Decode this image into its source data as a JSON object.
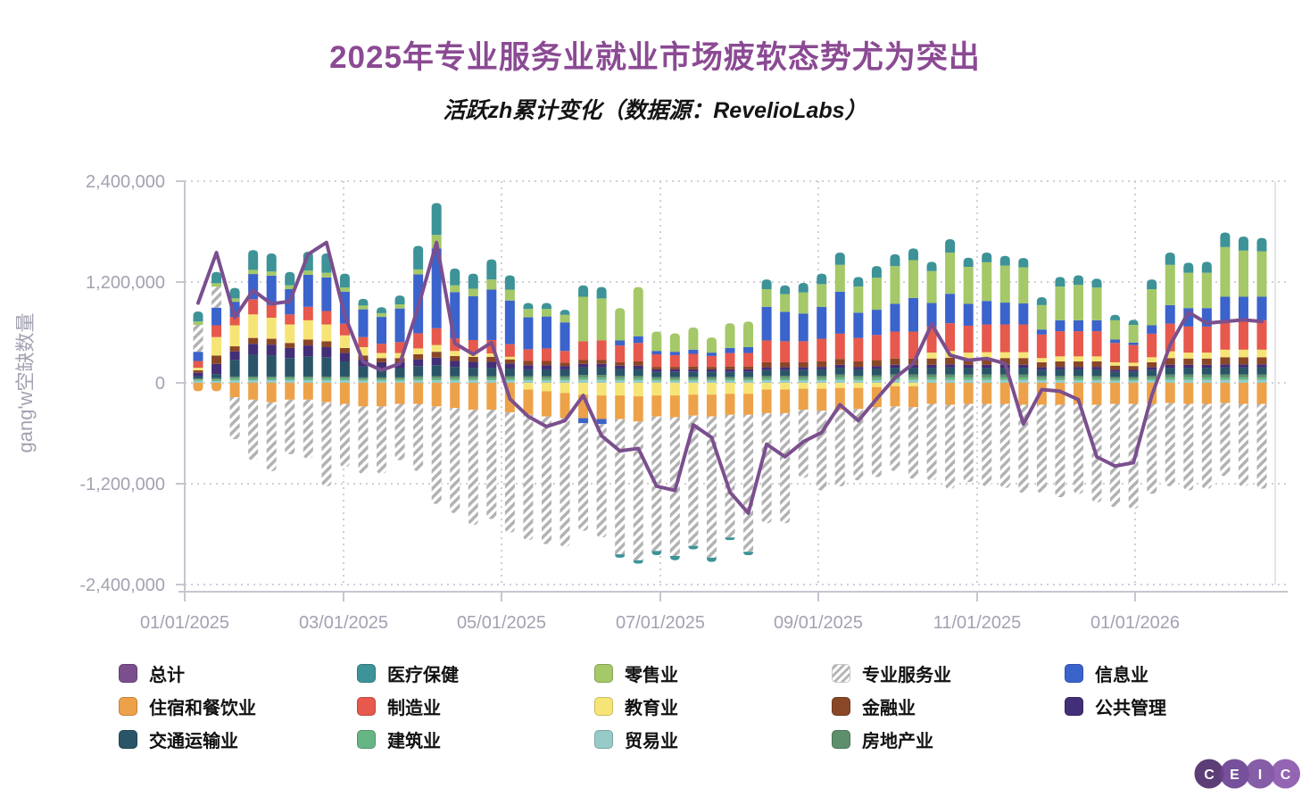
{
  "title": "2025年专业服务业就业市场疲软态势尤为突出",
  "subtitle": "活跃zh累计变化（数据源：RevelioLabs）",
  "colors": {
    "title": "#8b4a93",
    "axis_text": "#a2a2b2",
    "grid_line": "#cfcfd6",
    "axis_line": "#c6c6d0",
    "total_line": "#7b4f8e",
    "hatch_gray": "#b2b2b2"
  },
  "y_axis": {
    "label": "gang'w空缺数量",
    "tick_labels": [
      "2,400,000",
      "1,200,000",
      "0",
      "-1,200,000",
      "-2,400,000"
    ],
    "tick_values": [
      2400,
      1200,
      0,
      -1200,
      -2400
    ]
  },
  "x_axis": {
    "tick_labels": [
      "01/01/2025",
      "03/01/2025",
      "05/01/2025",
      "07/01/2025",
      "09/01/2025",
      "11/01/2025",
      "01/01/2026"
    ]
  },
  "legend": {
    "items": [
      {
        "label": "总计",
        "color": "#7b4f8e",
        "hatch": false
      },
      {
        "label": "医疗保健",
        "color": "#3d9397",
        "hatch": false
      },
      {
        "label": "零售业",
        "color": "#a5c868",
        "hatch": false
      },
      {
        "label": "专业服务业",
        "color": "#ffffff",
        "hatch": true
      },
      {
        "label": "信息业",
        "color": "#3b63cc",
        "hatch": false
      },
      {
        "label": "住宿和餐饮业",
        "color": "#eda249",
        "hatch": false
      },
      {
        "label": "制造业",
        "color": "#e6594c",
        "hatch": false
      },
      {
        "label": "教育业",
        "color": "#f6e576",
        "hatch": false
      },
      {
        "label": "金融业",
        "color": "#8a4727",
        "hatch": false
      },
      {
        "label": "公共管理",
        "color": "#432e78",
        "hatch": false
      },
      {
        "label": "交通运输业",
        "color": "#2a5568",
        "hatch": false
      },
      {
        "label": "建筑业",
        "color": "#67b584",
        "hatch": false
      },
      {
        "label": "贸易业",
        "color": "#96cbc8",
        "hatch": false
      },
      {
        "label": "房地产业",
        "color": "#5d8f6d",
        "hatch": false
      }
    ]
  },
  "logo": {
    "letters": [
      "C",
      "E",
      "I",
      "C"
    ],
    "colors": [
      "#4e2d6a",
      "#6a4191",
      "#7c4fa0",
      "#8a58ad"
    ]
  },
  "chart_data": {
    "type": "stacked-bar+line",
    "title": "2025年专业服务业就业市场疲软态势尤为突出",
    "subtitle": "活跃zh累计变化（数据源：RevelioLabs）",
    "ylabel": "gang'w空缺数量",
    "value_unit": "thousands (×1,000 vacancies)",
    "weeks": 59,
    "x_start": "01/01/2025",
    "x_frequency": "weekly",
    "ylim": [
      -2400,
      2400
    ],
    "grid": true,
    "legend_position": "bottom",
    "bar_series": [
      {
        "name": "贸易业",
        "color": "#96cbc8",
        "values": [
          25,
          20,
          30,
          30,
          30,
          30,
          30,
          30,
          30,
          25,
          25,
          25,
          30,
          30,
          30,
          30,
          30,
          30,
          30,
          30,
          30,
          35,
          35,
          30,
          30,
          25,
          25,
          25,
          25,
          25,
          25,
          30,
          30,
          30,
          30,
          35,
          30,
          30,
          35,
          35,
          35,
          35,
          35,
          35,
          35,
          35,
          30,
          30,
          30,
          30,
          25,
          25,
          30,
          35,
          35,
          35,
          35,
          35,
          35
        ]
      },
      {
        "name": "建筑业",
        "color": "#67b584",
        "values": [
          15,
          20,
          25,
          25,
          25,
          25,
          25,
          25,
          25,
          20,
          20,
          20,
          25,
          25,
          25,
          25,
          25,
          25,
          25,
          25,
          25,
          30,
          30,
          25,
          25,
          20,
          20,
          20,
          20,
          20,
          20,
          25,
          25,
          25,
          25,
          30,
          25,
          30,
          30,
          30,
          30,
          30,
          30,
          30,
          30,
          30,
          25,
          25,
          25,
          25,
          20,
          20,
          25,
          30,
          30,
          30,
          30,
          30,
          30
        ]
      },
      {
        "name": "房地产业",
        "color": "#5d8f6d",
        "values": [
          10,
          15,
          20,
          20,
          20,
          20,
          20,
          20,
          20,
          20,
          20,
          20,
          25,
          25,
          25,
          25,
          25,
          25,
          25,
          25,
          25,
          30,
          30,
          30,
          30,
          25,
          25,
          25,
          25,
          25,
          25,
          30,
          30,
          30,
          30,
          35,
          30,
          30,
          35,
          35,
          35,
          35,
          35,
          35,
          35,
          35,
          30,
          30,
          30,
          30,
          25,
          25,
          30,
          35,
          35,
          35,
          35,
          35,
          35
        ]
      },
      {
        "name": "交通运输业",
        "color": "#2a5568",
        "values": [
          30,
          50,
          200,
          260,
          250,
          220,
          240,
          230,
          180,
          130,
          110,
          110,
          120,
          130,
          110,
          100,
          100,
          90,
          80,
          80,
          80,
          90,
          90,
          80,
          80,
          60,
          60,
          60,
          60,
          60,
          60,
          70,
          70,
          70,
          75,
          80,
          75,
          80,
          80,
          80,
          80,
          85,
          80,
          80,
          80,
          80,
          70,
          75,
          75,
          75,
          60,
          60,
          70,
          80,
          80,
          80,
          85,
          85,
          85
        ]
      },
      {
        "name": "公共管理",
        "color": "#432e78",
        "values": [
          40,
          120,
          100,
          130,
          130,
          120,
          130,
          120,
          100,
          80,
          70,
          70,
          80,
          90,
          70,
          70,
          70,
          60,
          50,
          50,
          40,
          40,
          40,
          40,
          40,
          30,
          30,
          30,
          30,
          30,
          30,
          30,
          30,
          30,
          30,
          35,
          30,
          30,
          35,
          35,
          35,
          35,
          35,
          35,
          35,
          35,
          30,
          30,
          30,
          30,
          25,
          25,
          30,
          35,
          35,
          35,
          35,
          35,
          35
        ]
      },
      {
        "name": "金融业",
        "color": "#8a4727",
        "values": [
          30,
          100,
          60,
          70,
          70,
          60,
          70,
          70,
          60,
          50,
          50,
          50,
          60,
          70,
          60,
          60,
          60,
          50,
          50,
          50,
          40,
          50,
          50,
          40,
          50,
          30,
          30,
          35,
          30,
          35,
          35,
          60,
          60,
          60,
          65,
          70,
          65,
          70,
          75,
          75,
          75,
          80,
          75,
          80,
          80,
          80,
          60,
          65,
          65,
          65,
          50,
          45,
          60,
          80,
          75,
          75,
          85,
          85,
          85
        ]
      },
      {
        "name": "教育业",
        "color": "#f6e576",
        "values": [
          30,
          220,
          250,
          280,
          250,
          220,
          230,
          200,
          150,
          100,
          60,
          60,
          70,
          80,
          60,
          50,
          40,
          30,
          -80,
          -100,
          -120,
          -140,
          -150,
          -150,
          -160,
          -150,
          -150,
          -140,
          -140,
          -130,
          -130,
          -80,
          -80,
          -70,
          -70,
          -60,
          -60,
          -50,
          -40,
          -40,
          70,
          80,
          70,
          70,
          70,
          70,
          50,
          60,
          60,
          60,
          40,
          40,
          60,
          80,
          70,
          70,
          90,
          90,
          90
        ]
      },
      {
        "name": "住宿和餐饮业",
        "color": "#eda249",
        "values": [
          -100,
          -100,
          -170,
          -200,
          -230,
          -200,
          -200,
          -230,
          -250,
          -280,
          -280,
          -250,
          -250,
          -280,
          -300,
          -320,
          -320,
          -350,
          -300,
          -300,
          -300,
          -280,
          -280,
          -280,
          -300,
          -250,
          -260,
          -250,
          -260,
          -250,
          -250,
          -280,
          -280,
          -250,
          -260,
          -260,
          -250,
          -240,
          -240,
          -250,
          -250,
          -260,
          -250,
          -250,
          -250,
          -260,
          -260,
          -260,
          -250,
          -260,
          -250,
          -250,
          -250,
          -240,
          -250,
          -250,
          -240,
          -250,
          -250
        ]
      },
      {
        "name": "制造业",
        "color": "#e6594c",
        "values": [
          80,
          140,
          100,
          180,
          150,
          120,
          160,
          160,
          140,
          120,
          110,
          130,
          180,
          200,
          150,
          150,
          160,
          150,
          140,
          150,
          140,
          220,
          230,
          200,
          220,
          150,
          140,
          150,
          130,
          160,
          160,
          260,
          250,
          250,
          270,
          300,
          280,
          300,
          320,
          320,
          310,
          330,
          320,
          330,
          330,
          330,
          280,
          300,
          300,
          300,
          230,
          210,
          280,
          330,
          310,
          310,
          350,
          350,
          350
        ]
      },
      {
        "name": "信息业",
        "color": "#3b63cc",
        "values": [
          110,
          210,
          180,
          300,
          350,
          300,
          380,
          400,
          380,
          330,
          320,
          400,
          700,
          950,
          550,
          520,
          600,
          520,
          380,
          380,
          340,
          -60,
          -60,
          60,
          80,
          40,
          40,
          50,
          40,
          60,
          70,
          400,
          350,
          330,
          380,
          500,
          300,
          300,
          330,
          400,
          280,
          350,
          260,
          280,
          260,
          250,
          60,
          130,
          130,
          130,
          40,
          30,
          100,
          220,
          220,
          220,
          280,
          280,
          280
        ]
      },
      {
        "name": "专业服务业",
        "color": "hatch",
        "values": [
          320,
          250,
          -500,
          -720,
          -820,
          -650,
          -700,
          -1000,
          -750,
          -800,
          -800,
          -670,
          -800,
          -1160,
          -1250,
          -1370,
          -1300,
          -1430,
          -1490,
          -1520,
          -1530,
          -1280,
          -1350,
          -1610,
          -1650,
          -1600,
          -1650,
          -1550,
          -1680,
          -1460,
          -1630,
          -1310,
          -1310,
          -810,
          -950,
          -910,
          -850,
          -830,
          -770,
          -850,
          -910,
          -1000,
          -930,
          -980,
          -1000,
          -1050,
          -1050,
          -1100,
          -1070,
          -1160,
          -1230,
          -1250,
          -1070,
          -990,
          -1030,
          -1010,
          -870,
          -980,
          -1010
        ]
      },
      {
        "name": "零售业",
        "color": "#a5c868",
        "values": [
          40,
          40,
          40,
          50,
          50,
          45,
          50,
          55,
          50,
          45,
          45,
          50,
          60,
          160,
          80,
          90,
          120,
          130,
          100,
          90,
          90,
          530,
          500,
          385,
          585,
          230,
          220,
          265,
          180,
          295,
          305,
          210,
          210,
          250,
          270,
          320,
          310,
          380,
          450,
          450,
          380,
          490,
          440,
          460,
          440,
          430,
          290,
          400,
          420,
          390,
          230,
          210,
          430,
          480,
          420,
          420,
          590,
          550,
          540
        ]
      },
      {
        "name": "医疗保健",
        "color": "#3d9397",
        "values": [
          120,
          135,
          125,
          235,
          215,
          160,
          225,
          230,
          165,
          80,
          70,
          105,
          280,
          380,
          200,
          180,
          240,
          170,
          70,
          70,
          60,
          135,
          135,
          -40,
          -40,
          -50,
          -50,
          -40,
          -50,
          -30,
          -40,
          115,
          105,
          115,
          125,
          145,
          115,
          140,
          140,
          140,
          110,
          160,
          110,
          115,
          115,
          110,
          95,
          115,
          115,
          105,
          65,
          60,
          115,
          145,
          120,
          130,
          175,
          165,
          160
        ]
      }
    ],
    "line_series": {
      "name": "总计",
      "color": "#7b4f8e",
      "values": [
        950,
        1550,
        780,
        1100,
        940,
        970,
        1530,
        1670,
        800,
        250,
        150,
        230,
        900,
        1670,
        470,
        340,
        480,
        -190,
        -400,
        -520,
        -450,
        -150,
        -630,
        -810,
        -780,
        -1230,
        -1280,
        -500,
        -650,
        -1300,
        -1550,
        -730,
        -880,
        -700,
        -590,
        -260,
        -450,
        -190,
        60,
        230,
        700,
        330,
        270,
        290,
        230,
        -490,
        -80,
        -100,
        -200,
        -880,
        -990,
        -950,
        -150,
        450,
        840,
        710,
        730,
        750,
        730
      ]
    }
  }
}
